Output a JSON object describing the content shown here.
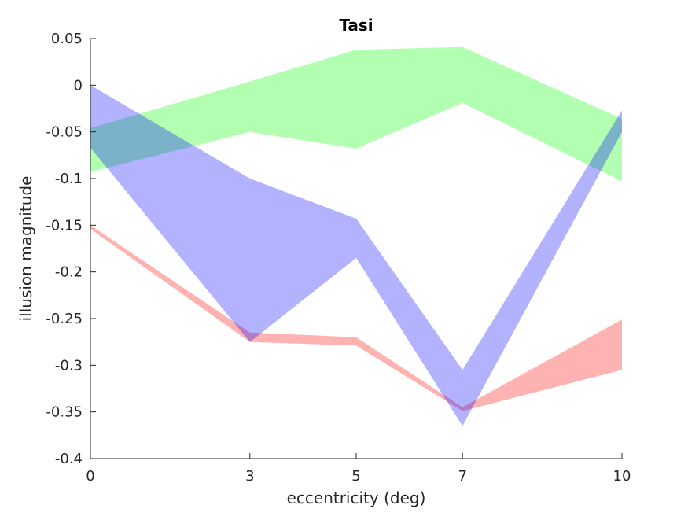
{
  "chart_data": {
    "type": "area",
    "title": "Tasi",
    "xlabel": "eccentricity (deg)",
    "ylabel": "illusion magnitude",
    "x": [
      0,
      3,
      5,
      7,
      10
    ],
    "xlim": [
      0,
      10
    ],
    "ylim": [
      -0.4,
      0.05
    ],
    "xticks": [
      "0",
      "3",
      "5",
      "7",
      "10"
    ],
    "yticks": [
      "0.05",
      "0",
      "-0.05",
      "-0.1",
      "-0.15",
      "-0.2",
      "-0.25",
      "-0.3",
      "-0.35",
      "-0.4"
    ],
    "ytick_values": [
      0.05,
      0,
      -0.05,
      -0.1,
      -0.15,
      -0.2,
      -0.25,
      -0.3,
      -0.35,
      -0.4
    ],
    "grid": false,
    "series": [
      {
        "color": "#ff0000",
        "opacity": 0.3,
        "upper": [
          -0.15,
          -0.265,
          -0.27,
          -0.345,
          -0.251
        ],
        "lower": [
          -0.154,
          -0.275,
          -0.279,
          -0.349,
          -0.305
        ]
      },
      {
        "color": "#00ff00",
        "opacity": 0.3,
        "upper": [
          -0.046,
          0.004,
          0.038,
          0.041,
          -0.036
        ],
        "lower": [
          -0.093,
          -0.05,
          -0.068,
          -0.019,
          -0.103
        ]
      },
      {
        "color": "#0000ff",
        "opacity": 0.3,
        "upper": [
          0.0,
          -0.1,
          -0.143,
          -0.305,
          -0.027
        ],
        "lower": [
          -0.067,
          -0.275,
          -0.185,
          -0.365,
          -0.05
        ]
      }
    ]
  }
}
